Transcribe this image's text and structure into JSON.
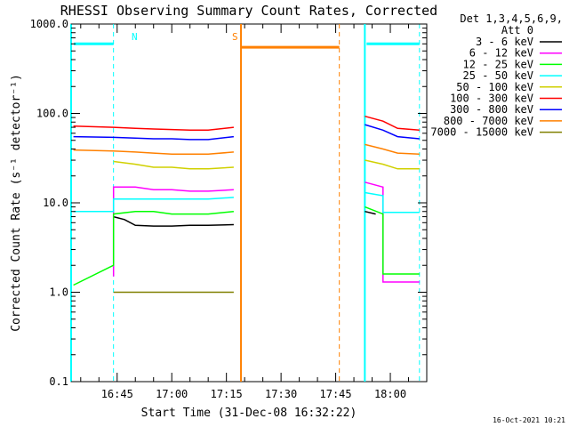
{
  "chart_data": {
    "type": "line",
    "title": "RHESSI Observing Summary Count Rates, Corrected",
    "xlabel": "Start Time (31-Dec-08 16:32:22)",
    "ylabel": "Corrected Count Rate (s⁻¹ detector⁻¹)",
    "yscale": "log",
    "ylim": [
      0.1,
      1000
    ],
    "xlim": [
      "16:32:22",
      "18:10:00"
    ],
    "x_ticks": [
      "16:45",
      "17:00",
      "17:15",
      "17:30",
      "17:45",
      "18:00"
    ],
    "y_ticks": [
      "0.1",
      "1.0",
      "10.0",
      "100.0",
      "1000.0"
    ],
    "timestamp": "16-Oct-2021 10:21",
    "legend": {
      "title_lines": [
        "Det 1,3,4,5,6,9,",
        "Att 0"
      ],
      "placement": "right"
    },
    "series": [
      {
        "name": "3 - 6 keV",
        "color": "#000000",
        "points": [
          [
            "16:33",
            null
          ],
          [
            "16:44",
            7
          ],
          [
            "16:47",
            6.5
          ],
          [
            "16:50",
            5.6
          ],
          [
            "16:55",
            5.5
          ],
          [
            "17:00",
            5.5
          ],
          [
            "17:05",
            5.6
          ],
          [
            "17:10",
            5.6
          ],
          [
            "17:17",
            5.7
          ],
          [
            "17:19",
            null
          ],
          [
            "17:53",
            null
          ],
          [
            "17:53",
            8
          ],
          [
            "17:56",
            7.5
          ],
          [
            "17:57",
            null
          ]
        ]
      },
      {
        "name": "6 - 12 keV",
        "color": "#ff00ff",
        "points": [
          [
            "16:33",
            null
          ],
          [
            "16:44",
            1.5
          ],
          [
            "16:44",
            15
          ],
          [
            "16:50",
            15
          ],
          [
            "16:55",
            14
          ],
          [
            "17:00",
            14
          ],
          [
            "17:05",
            13.5
          ],
          [
            "17:10",
            13.5
          ],
          [
            "17:17",
            14
          ],
          [
            "17:19",
            null
          ],
          [
            "17:53",
            null
          ],
          [
            "17:53",
            17
          ],
          [
            "17:58",
            15
          ],
          [
            "17:58",
            1.3
          ],
          [
            "18:08",
            1.3
          ],
          [
            "18:08",
            null
          ]
        ]
      },
      {
        "name": "12 - 25 keV",
        "color": "#00ff00",
        "points": [
          [
            "16:33",
            1.2
          ],
          [
            "16:44",
            2
          ],
          [
            "16:44",
            7.5
          ],
          [
            "16:50",
            8
          ],
          [
            "16:55",
            8
          ],
          [
            "17:00",
            7.5
          ],
          [
            "17:05",
            7.5
          ],
          [
            "17:10",
            7.5
          ],
          [
            "17:17",
            8
          ],
          [
            "17:19",
            null
          ],
          [
            "17:53",
            null
          ],
          [
            "17:53",
            9
          ],
          [
            "17:58",
            7.5
          ],
          [
            "17:58",
            1.6
          ],
          [
            "18:08",
            1.6
          ],
          [
            "18:08",
            null
          ]
        ]
      },
      {
        "name": "25 - 50 keV",
        "color": "#00ffff",
        "points": [
          [
            "16:33",
            8
          ],
          [
            "16:44",
            8
          ],
          [
            "16:44",
            11
          ],
          [
            "16:50",
            11
          ],
          [
            "16:55",
            11
          ],
          [
            "17:00",
            11
          ],
          [
            "17:05",
            11
          ],
          [
            "17:10",
            11
          ],
          [
            "17:17",
            11.5
          ],
          [
            "17:19",
            null
          ],
          [
            "17:53",
            null
          ],
          [
            "17:53",
            13
          ],
          [
            "17:58",
            12
          ],
          [
            "17:58",
            7.8
          ],
          [
            "18:08",
            7.8
          ],
          [
            "18:08",
            null
          ]
        ]
      },
      {
        "name": "50 - 100 keV",
        "color": "#d0d000",
        "points": [
          [
            "16:33",
            null
          ],
          [
            "16:44",
            29
          ],
          [
            "16:50",
            27
          ],
          [
            "16:55",
            25
          ],
          [
            "17:00",
            25
          ],
          [
            "17:05",
            24
          ],
          [
            "17:10",
            24
          ],
          [
            "17:17",
            25
          ],
          [
            "17:19",
            null
          ],
          [
            "17:53",
            null
          ],
          [
            "17:53",
            30
          ],
          [
            "17:58",
            27
          ],
          [
            "18:02",
            24
          ],
          [
            "18:08",
            24
          ],
          [
            "18:08",
            null
          ]
        ]
      },
      {
        "name": "100 - 300 keV",
        "color": "#ff0000",
        "points": [
          [
            "16:33",
            72
          ],
          [
            "16:44",
            70
          ],
          [
            "16:50",
            68
          ],
          [
            "16:55",
            67
          ],
          [
            "17:00",
            66
          ],
          [
            "17:05",
            65
          ],
          [
            "17:10",
            65
          ],
          [
            "17:17",
            70
          ],
          [
            "17:19",
            null
          ],
          [
            "17:53",
            null
          ],
          [
            "17:53",
            93
          ],
          [
            "17:58",
            82
          ],
          [
            "18:02",
            68
          ],
          [
            "18:08",
            65
          ],
          [
            "18:08",
            null
          ]
        ]
      },
      {
        "name": "300 - 800 keV",
        "color": "#0000ff",
        "points": [
          [
            "16:33",
            55
          ],
          [
            "16:44",
            54
          ],
          [
            "16:50",
            53
          ],
          [
            "16:55",
            52
          ],
          [
            "17:00",
            52
          ],
          [
            "17:05",
            51
          ],
          [
            "17:10",
            51
          ],
          [
            "17:17",
            55
          ],
          [
            "17:19",
            null
          ],
          [
            "17:53",
            null
          ],
          [
            "17:53",
            75
          ],
          [
            "17:58",
            65
          ],
          [
            "18:02",
            55
          ],
          [
            "18:08",
            52
          ],
          [
            "18:08",
            null
          ]
        ]
      },
      {
        "name": "800 - 7000 keV",
        "color": "#ff8000",
        "points": [
          [
            "16:33",
            39
          ],
          [
            "16:44",
            38
          ],
          [
            "16:50",
            37
          ],
          [
            "16:55",
            36
          ],
          [
            "17:00",
            35
          ],
          [
            "17:05",
            35
          ],
          [
            "17:10",
            35
          ],
          [
            "17:17",
            37
          ],
          [
            "17:19",
            null
          ],
          [
            "17:53",
            null
          ],
          [
            "17:53",
            45
          ],
          [
            "17:58",
            40
          ],
          [
            "18:02",
            36
          ],
          [
            "18:08",
            35
          ],
          [
            "18:08",
            null
          ]
        ]
      },
      {
        "name": "7000 - 15000 keV",
        "color": "#808000",
        "points": [
          [
            "16:33",
            null
          ],
          [
            "16:44",
            1
          ],
          [
            "16:50",
            1
          ],
          [
            "16:55",
            1
          ],
          [
            "17:00",
            1
          ],
          [
            "17:05",
            1
          ],
          [
            "17:10",
            1
          ],
          [
            "17:17",
            1
          ],
          [
            "17:19",
            null
          ]
        ]
      }
    ],
    "annotations": [
      {
        "text": "N",
        "x": "16:47",
        "color": "#00ffff",
        "kind": "night-marker"
      },
      {
        "text": "S",
        "x": "17:19",
        "color": "#ff8000",
        "kind": "saa-marker"
      }
    ]
  }
}
